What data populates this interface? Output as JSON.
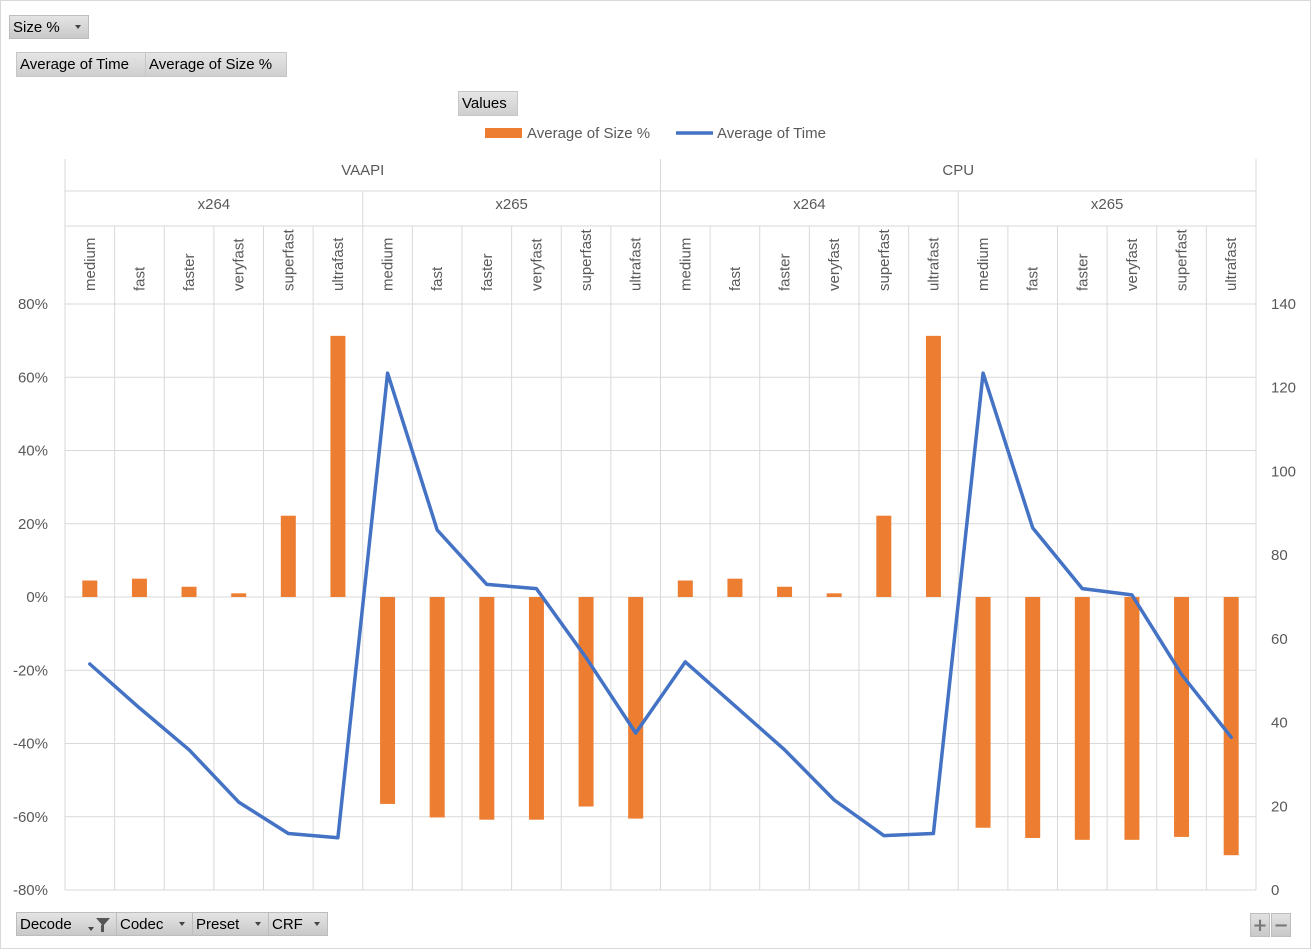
{
  "filter_buttons": {
    "report_filter": "Size %",
    "value_fields": [
      "Average of Time",
      "Average of Size %"
    ],
    "values_label": "Values",
    "axis_fields": [
      "Decode",
      "Codec",
      "Preset",
      "CRF"
    ]
  },
  "zoom": {
    "plus": "+",
    "minus": "−"
  },
  "chart_data": {
    "type": "bar",
    "legend_position": "top",
    "gridlines": true,
    "category_levels": {
      "decode": [
        "VAAPI",
        "CPU"
      ],
      "codec": [
        "x264",
        "x265"
      ],
      "preset": [
        "medium",
        "fast",
        "faster",
        "veryfast",
        "superfast",
        "ultrafast"
      ]
    },
    "categories": [
      "VAAPI | x264 | medium",
      "VAAPI | x264 | fast",
      "VAAPI | x264 | faster",
      "VAAPI | x264 | veryfast",
      "VAAPI | x264 | superfast",
      "VAAPI | x264 | ultrafast",
      "VAAPI | x265 | medium",
      "VAAPI | x265 | fast",
      "VAAPI | x265 | faster",
      "VAAPI | x265 | veryfast",
      "VAAPI | x265 | superfast",
      "VAAPI | x265 | ultrafast",
      "CPU | x264 | medium",
      "CPU | x264 | fast",
      "CPU | x264 | faster",
      "CPU | x264 | veryfast",
      "CPU | x264 | superfast",
      "CPU | x264 | ultrafast",
      "CPU | x265 | medium",
      "CPU | x265 | fast",
      "CPU | x265 | faster",
      "CPU | x265 | veryfast",
      "CPU | x265 | superfast",
      "CPU | x265 | ultrafast"
    ],
    "series": [
      {
        "name": "Average of Size %",
        "type": "bar",
        "axis": "left",
        "color": "#ed7d31",
        "values": [
          4.5,
          5.0,
          2.8,
          1.0,
          22.2,
          71.3,
          -56.5,
          -60.2,
          -60.8,
          -60.8,
          -57.2,
          -60.5,
          4.5,
          5.0,
          2.8,
          1.0,
          22.2,
          71.3,
          -63.0,
          -65.8,
          -66.3,
          -66.3,
          -65.5,
          -70.5
        ]
      },
      {
        "name": "Average of Time",
        "type": "line",
        "axis": "right",
        "color": "#4472c4",
        "values": [
          54,
          43.5,
          33.5,
          21,
          13.5,
          12.5,
          123.5,
          86,
          73,
          72,
          55.5,
          37.5,
          54.5,
          44,
          33.5,
          21.5,
          13,
          13.5,
          123.5,
          86.5,
          72,
          70.5,
          51.5,
          36.5
        ]
      }
    ],
    "y_axis_left": {
      "min": -80,
      "max": 80,
      "step": 20,
      "ticks": [
        "-80%",
        "-60%",
        "-40%",
        "-20%",
        "0%",
        "20%",
        "40%",
        "60%",
        "80%"
      ]
    },
    "y_axis_right": {
      "min": 0,
      "max": 140,
      "step": 20,
      "ticks": [
        "0",
        "20",
        "40",
        "60",
        "80",
        "100",
        "120",
        "140"
      ]
    },
    "legend": [
      "Average of Size %",
      "Average of Time"
    ]
  }
}
